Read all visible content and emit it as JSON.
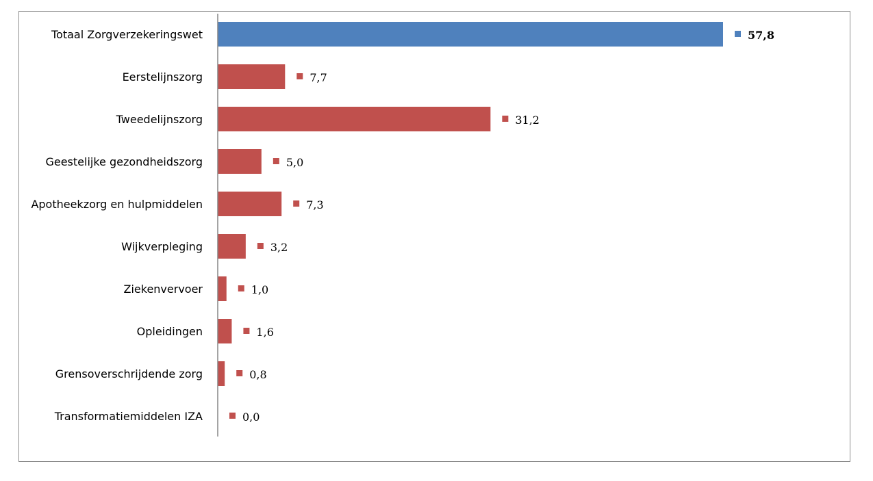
{
  "chart_data": {
    "type": "bar",
    "orientation": "horizontal",
    "categories": [
      "Totaal Zorgverzekeringswet",
      "Eerstelijnszorg",
      "Tweedelijnszorg",
      "Geestelijke gezondheidszorg",
      "Apotheekzorg en hulpmiddelen",
      "Wijkverpleging",
      "Ziekenvervoer",
      "Opleidingen",
      "Grensoverschrijdende zorg",
      "Transformatiemiddelen IZA"
    ],
    "values": [
      57.8,
      7.7,
      31.2,
      5.0,
      7.3,
      3.2,
      1.0,
      1.6,
      0.8,
      0.0
    ],
    "value_labels": [
      "57,8",
      "7,7",
      "31,2",
      "5,0",
      "7,3",
      "3,2",
      "1,0",
      "1,6",
      "0,8",
      "0,0"
    ],
    "highlight_index": 0,
    "colors": {
      "highlight": "#4f81bd",
      "default": "#c0504d",
      "axis": "#868686",
      "border": "#8c8c8c"
    },
    "title": "",
    "xlabel": "",
    "ylabel": "",
    "xlim": [
      0,
      60
    ],
    "grid": false,
    "legend": "none"
  }
}
